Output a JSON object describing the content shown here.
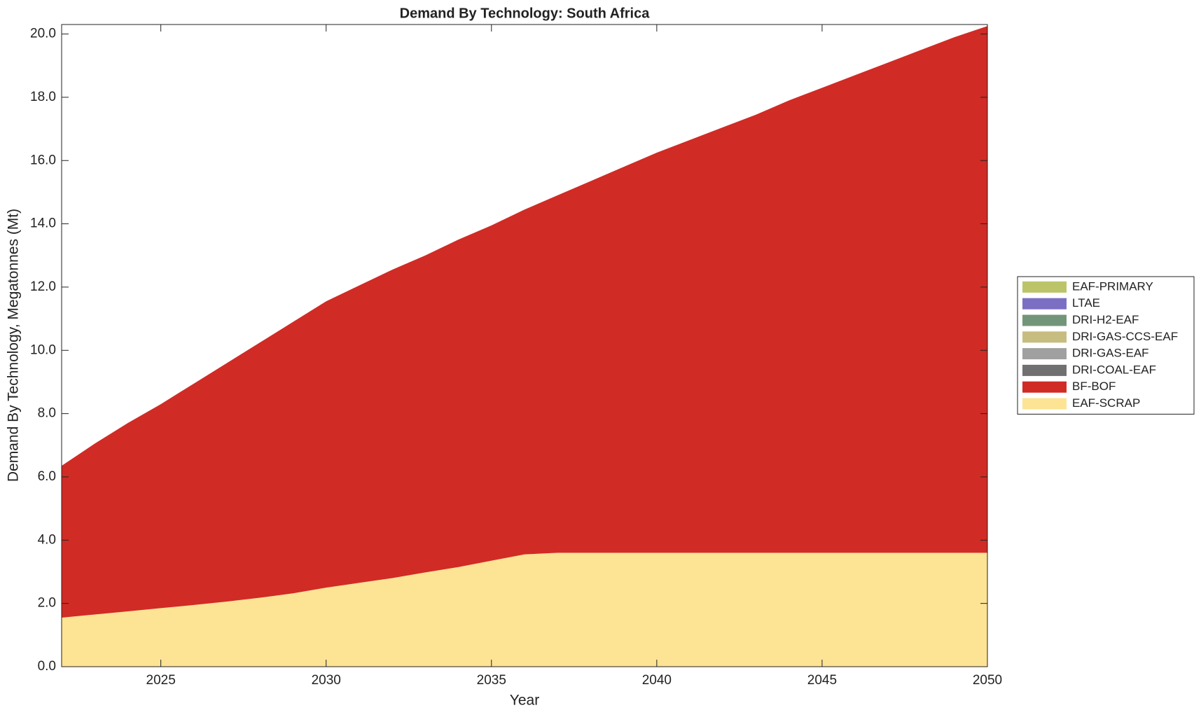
{
  "chart_data": {
    "type": "area",
    "stacked": true,
    "title": "Demand By Technology: South Africa",
    "xlabel": "Year",
    "ylabel": "Demand By Technology, Megatonnes (Mt)",
    "x": [
      2022,
      2023,
      2024,
      2025,
      2026,
      2027,
      2028,
      2029,
      2030,
      2031,
      2032,
      2033,
      2034,
      2035,
      2036,
      2037,
      2038,
      2039,
      2040,
      2041,
      2042,
      2043,
      2044,
      2045,
      2046,
      2047,
      2048,
      2049,
      2050
    ],
    "series": [
      {
        "name": "EAF-PRIMARY",
        "color": "#bcc46a",
        "values": [
          0,
          0,
          0,
          0,
          0,
          0,
          0,
          0,
          0,
          0,
          0,
          0,
          0,
          0,
          0,
          0,
          0,
          0,
          0,
          0,
          0,
          0,
          0,
          0,
          0,
          0,
          0,
          0,
          0
        ]
      },
      {
        "name": "LTAE",
        "color": "#7b6fc4",
        "values": [
          0,
          0,
          0,
          0,
          0,
          0,
          0,
          0,
          0,
          0,
          0,
          0,
          0,
          0,
          0,
          0,
          0,
          0,
          0,
          0,
          0,
          0,
          0,
          0,
          0,
          0,
          0,
          0,
          0
        ]
      },
      {
        "name": "DRI-H2-EAF",
        "color": "#72957a",
        "values": [
          0,
          0,
          0,
          0,
          0,
          0,
          0,
          0,
          0,
          0,
          0,
          0,
          0,
          0,
          0,
          0,
          0,
          0,
          0,
          0,
          0,
          0,
          0,
          0,
          0,
          0,
          0,
          0,
          0
        ]
      },
      {
        "name": "DRI-GAS-CCS-EAF",
        "color": "#c7bd80",
        "values": [
          0,
          0,
          0,
          0,
          0,
          0,
          0,
          0,
          0,
          0,
          0,
          0,
          0,
          0,
          0,
          0,
          0,
          0,
          0,
          0,
          0,
          0,
          0,
          0,
          0,
          0,
          0,
          0,
          0
        ]
      },
      {
        "name": "DRI-GAS-EAF",
        "color": "#a0a0a0",
        "values": [
          0,
          0,
          0,
          0,
          0,
          0,
          0,
          0,
          0,
          0,
          0,
          0,
          0,
          0,
          0,
          0,
          0,
          0,
          0,
          0,
          0,
          0,
          0,
          0,
          0,
          0,
          0,
          0,
          0
        ]
      },
      {
        "name": "DRI-COAL-EAF",
        "color": "#707070",
        "values": [
          0,
          0,
          0,
          0,
          0,
          0,
          0,
          0,
          0,
          0,
          0,
          0,
          0,
          0,
          0,
          0,
          0,
          0,
          0,
          0,
          0,
          0,
          0,
          0,
          0,
          0,
          0,
          0,
          0
        ]
      },
      {
        "name": "BF-BOF",
        "color": "#d12b25",
        "values": [
          4.8,
          5.4,
          5.95,
          6.45,
          7.0,
          7.54,
          8.07,
          8.58,
          9.05,
          9.4,
          9.75,
          10.02,
          10.35,
          10.6,
          10.9,
          11.3,
          11.75,
          12.2,
          12.65,
          13.05,
          13.45,
          13.85,
          14.3,
          14.7,
          15.1,
          15.5,
          15.9,
          16.3,
          16.65
        ]
      },
      {
        "name": "EAF-SCRAP",
        "color": "#fde394",
        "values": [
          1.55,
          1.65,
          1.75,
          1.85,
          1.95,
          2.06,
          2.18,
          2.32,
          2.5,
          2.65,
          2.8,
          2.98,
          3.15,
          3.35,
          3.55,
          3.6,
          3.6,
          3.6,
          3.6,
          3.6,
          3.6,
          3.6,
          3.6,
          3.6,
          3.6,
          3.6,
          3.6,
          3.6,
          3.6
        ]
      }
    ],
    "xlim": [
      2022,
      2050
    ],
    "xticks": [
      2025,
      2030,
      2035,
      2040,
      2045,
      2050
    ],
    "ylim": [
      0,
      20.3
    ],
    "yticks": [
      {
        "value": 0,
        "label": "0.0"
      },
      {
        "value": 2,
        "label": "2.0"
      },
      {
        "value": 4,
        "label": "4.0"
      },
      {
        "value": 6,
        "label": "6.0"
      },
      {
        "value": 8,
        "label": "8.0"
      },
      {
        "value": 10,
        "label": "10.0"
      },
      {
        "value": 12,
        "label": "12.0"
      },
      {
        "value": 14,
        "label": "14.0"
      },
      {
        "value": 16,
        "label": "16.0"
      },
      {
        "value": 18,
        "label": "18.0"
      },
      {
        "value": 20,
        "label": "20.0"
      }
    ],
    "grid": false,
    "legend": "right"
  }
}
